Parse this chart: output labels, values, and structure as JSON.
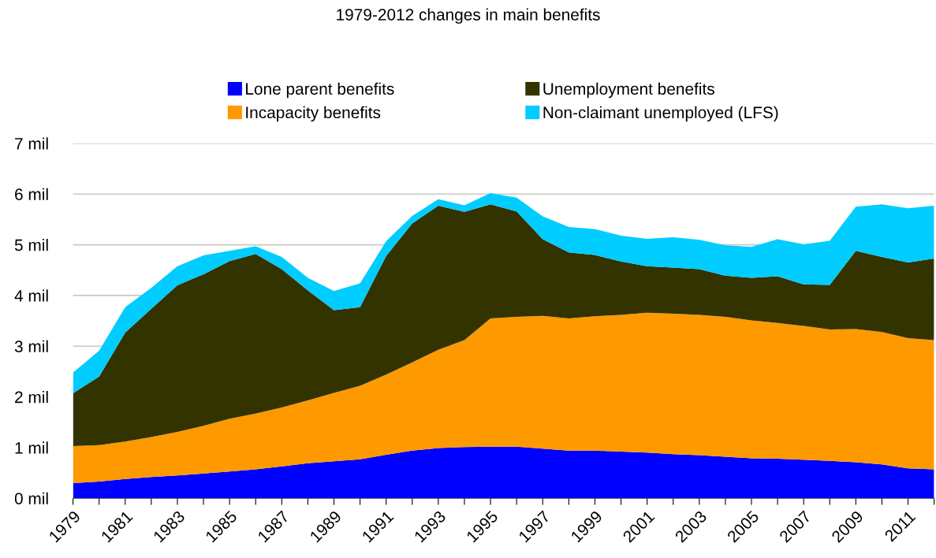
{
  "chart_data": {
    "type": "area",
    "stacked": true,
    "title": "1979-2012 changes in main benefits",
    "x": [
      1979,
      1980,
      1981,
      1982,
      1983,
      1984,
      1985,
      1986,
      1987,
      1988,
      1989,
      1990,
      1991,
      1992,
      1993,
      1994,
      1995,
      1996,
      1997,
      1998,
      1999,
      2000,
      2001,
      2002,
      2003,
      2004,
      2005,
      2006,
      2007,
      2008,
      2009,
      2010,
      2011,
      2012
    ],
    "series": [
      {
        "name": "Lone parent benefits",
        "color": "#0000ff",
        "values": [
          0.3,
          0.33,
          0.38,
          0.42,
          0.45,
          0.49,
          0.53,
          0.57,
          0.63,
          0.69,
          0.73,
          0.77,
          0.86,
          0.94,
          0.99,
          1.01,
          1.02,
          1.02,
          0.98,
          0.94,
          0.94,
          0.92,
          0.9,
          0.87,
          0.85,
          0.82,
          0.79,
          0.78,
          0.76,
          0.74,
          0.71,
          0.67,
          0.59,
          0.57
        ]
      },
      {
        "name": "Incapacity benefits",
        "color": "#ff9900",
        "values": [
          0.73,
          0.72,
          0.74,
          0.79,
          0.86,
          0.94,
          1.04,
          1.1,
          1.16,
          1.24,
          1.35,
          1.45,
          1.58,
          1.74,
          1.94,
          2.11,
          2.53,
          2.56,
          2.62,
          2.61,
          2.65,
          2.7,
          2.76,
          2.77,
          2.77,
          2.76,
          2.72,
          2.68,
          2.64,
          2.59,
          2.63,
          2.61,
          2.57,
          2.55
        ]
      },
      {
        "name": "Unemployment benefits",
        "color": "#333300",
        "values": [
          1.04,
          1.35,
          2.15,
          2.53,
          2.89,
          2.99,
          3.11,
          3.15,
          2.73,
          2.17,
          1.63,
          1.55,
          2.34,
          2.74,
          2.84,
          2.53,
          2.25,
          2.08,
          1.51,
          1.3,
          1.21,
          1.05,
          0.92,
          0.91,
          0.9,
          0.81,
          0.84,
          0.92,
          0.82,
          0.88,
          1.54,
          1.48,
          1.49,
          1.61
        ]
      },
      {
        "name": "Non-claimant unemployed (LFS)",
        "color": "#00ccff",
        "values": [
          0.41,
          0.51,
          0.5,
          0.41,
          0.38,
          0.37,
          0.2,
          0.15,
          0.24,
          0.25,
          0.38,
          0.47,
          0.29,
          0.15,
          0.13,
          0.13,
          0.22,
          0.27,
          0.45,
          0.5,
          0.51,
          0.51,
          0.54,
          0.6,
          0.58,
          0.6,
          0.61,
          0.73,
          0.79,
          0.87,
          0.87,
          1.04,
          1.07,
          1.04
        ]
      }
    ],
    "xlim": [
      1979,
      2012
    ],
    "xticks": [
      1979,
      {
        "value": 1980,
        "label": null
      },
      1981,
      {
        "value": 1982,
        "label": null
      },
      1983,
      {
        "value": 1984,
        "label": null
      },
      1985,
      {
        "value": 1986,
        "label": null
      },
      1987,
      {
        "value": 1988,
        "label": null
      },
      1989,
      {
        "value": 1990,
        "label": null
      },
      1991,
      {
        "value": 1992,
        "label": null
      },
      1993,
      {
        "value": 1994,
        "label": null
      },
      1995,
      {
        "value": 1996,
        "label": null
      },
      1997,
      {
        "value": 1998,
        "label": null
      },
      1999,
      {
        "value": 2000,
        "label": null
      },
      2001,
      {
        "value": 2002,
        "label": null
      },
      2003,
      {
        "value": 2004,
        "label": null
      },
      2005,
      {
        "value": 2006,
        "label": null
      },
      2007,
      {
        "value": 2008,
        "label": null
      },
      2009,
      {
        "value": 2010,
        "label": null
      },
      2011,
      {
        "value": 2012,
        "label": null
      }
    ],
    "ylim": [
      0,
      7
    ],
    "yticks": [
      {
        "value": 0,
        "label": "0 mil"
      },
      {
        "value": 1,
        "label": "1 mil"
      },
      {
        "value": 2,
        "label": "2 mil"
      },
      {
        "value": 3,
        "label": "3 mil"
      },
      {
        "value": 4,
        "label": "4 mil"
      },
      {
        "value": 5,
        "label": "5 mil"
      },
      {
        "value": 6,
        "label": "6 mil"
      },
      {
        "value": 7,
        "label": "7 mil"
      }
    ],
    "grid": "y",
    "legend": "top"
  }
}
